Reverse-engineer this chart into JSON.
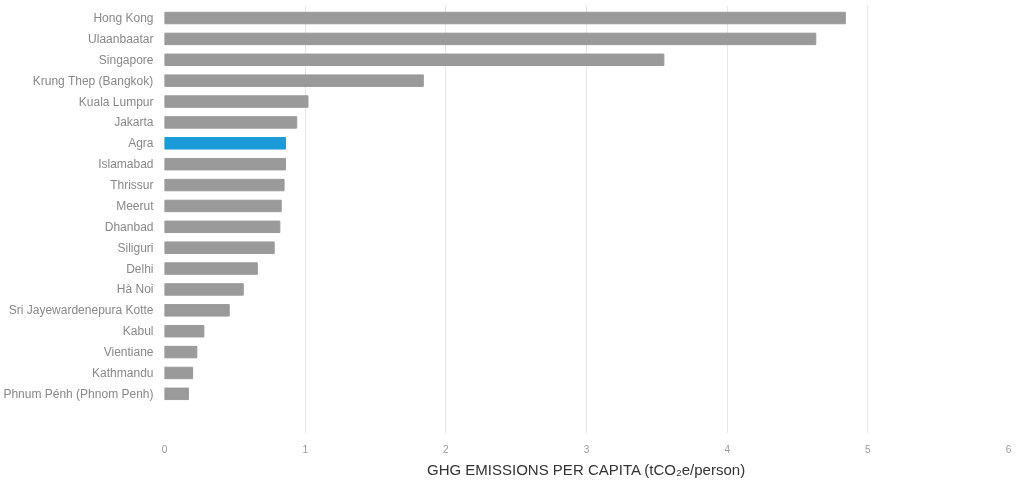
{
  "chart_data": {
    "type": "bar",
    "orientation": "horizontal",
    "xlabel": "GHG EMISSIONS PER CAPITA (tCO₂e/person)",
    "categories": [
      "Hong Kong",
      "Ulaanbaatar",
      "Singapore",
      "Krung Thep (Bangkok)",
      "Kuala Lumpur",
      "Jakarta",
      "Agra",
      "Islamabad",
      "Thrissur",
      "Meerut",
      "Dhanbad",
      "Siliguri",
      "Delhi",
      "Hà Noi",
      "Sri Jayewardenepura Kotte",
      "Kabul",
      "Vientiane",
      "Kathmandu",
      "Phnum Pénh (Phnom Penh)"
    ],
    "values": [
      4.84,
      4.63,
      3.55,
      1.84,
      1.02,
      0.94,
      0.86,
      0.86,
      0.85,
      0.83,
      0.82,
      0.78,
      0.66,
      0.56,
      0.46,
      0.28,
      0.23,
      0.2,
      0.17
    ],
    "colors": [
      "#9a9a9a",
      "#9a9a9a",
      "#9a9a9a",
      "#9a9a9a",
      "#9a9a9a",
      "#9a9a9a",
      "#1a9bd7",
      "#9a9a9a",
      "#9a9a9a",
      "#9a9a9a",
      "#9a9a9a",
      "#9a9a9a",
      "#9a9a9a",
      "#9a9a9a",
      "#9a9a9a",
      "#9a9a9a",
      "#9a9a9a",
      "#9a9a9a",
      "#9a9a9a"
    ],
    "xlim": [
      0,
      6
    ],
    "xticks": [
      0,
      1,
      2,
      3,
      4,
      5,
      6
    ],
    "grid": "x"
  }
}
